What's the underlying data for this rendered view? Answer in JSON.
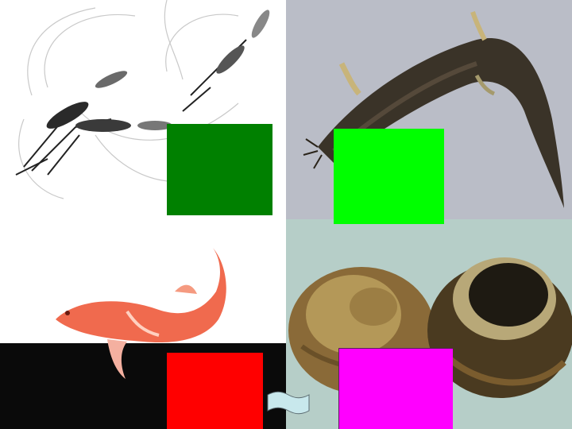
{
  "panels": {
    "top_left": {
      "subject": "shrimp-illustration"
    },
    "top_right": {
      "subject": "loach-photo"
    },
    "bottom_left": {
      "subject": "goldfish-painting",
      "caption": ""
    },
    "bottom_right": {
      "subject": "snail-photo"
    }
  },
  "blocks": [
    {
      "name": "answer-block-1",
      "color": "#008000"
    },
    {
      "name": "answer-block-2",
      "color": "#00ff00"
    },
    {
      "name": "answer-block-3",
      "color": "#ff0000"
    },
    {
      "name": "answer-block-4",
      "color": "#ff00ff"
    }
  ],
  "action_button": {
    "shape": "wave",
    "color": "#c8e8ec"
  }
}
